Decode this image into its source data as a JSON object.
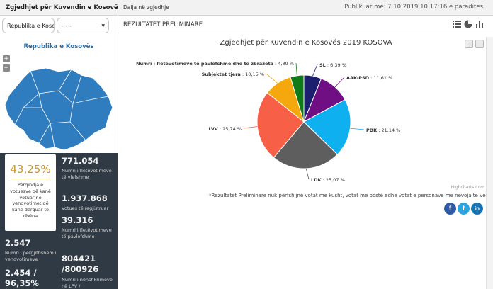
{
  "sidebar": {
    "title": "Zgjedhjet për Kuvendin e Kosovës 2019",
    "region_select": "Republika e Kosovës",
    "municipality_select": "- - -",
    "map_title": "Republika e Kosovës",
    "zoom_in": "+",
    "zoom_out": "−",
    "turnout_percent": "43,25%",
    "turnout_desc": "Përqindja e votuesve që kanë votuar në vendvotimet që kanë dërguar të dhëna",
    "stats": [
      {
        "num": "771.054",
        "label": "Numri i fletëvotimeve të vlefshme"
      },
      {
        "num": "1.937.868",
        "label": "Votues të regjistruar"
      },
      {
        "num": "39.316",
        "label": "Numri i fletëvotimeve të pavlefshme"
      },
      {
        "num": "804421 /800926",
        "label": "Numri i nënshkrimeve në LPV / fletëvotimeve"
      }
    ],
    "stats_left": [
      {
        "num": "2.547",
        "label": "Numri i përgjithshëm i vendvotimeve"
      },
      {
        "num": "2.454 / 96,35%",
        "label": ""
      }
    ]
  },
  "topbar": {
    "round_label": "Dalja në zgjedhje",
    "published": "Publikuar më: 7.10.2019 10:17:16 e paradites"
  },
  "panel": {
    "title": "REZULTATET PRELIMINARE",
    "credit": "Highcharts.com",
    "note": "*Rezultatet Preliminare nuk përfshijnë votat me kusht, votat me postë edhe votat e personave me nevoja te veçanta",
    "social": {
      "fb": "f",
      "tw": "t",
      "li": "in"
    }
  },
  "chart_data": {
    "type": "pie",
    "title": "Zgjedhjet për Kuvendin e Kosovës 2019 KOSOVA",
    "series": [
      {
        "name": "SL",
        "value": 6.39,
        "label": "SL : 6,39 %",
        "color": "#1b1f6e"
      },
      {
        "name": "AAK-PSD",
        "value": 11.61,
        "label": "AAK-PSD : 11,61 %",
        "color": "#6f0f83"
      },
      {
        "name": "PDK",
        "value": 21.14,
        "label": "PDK : 21,14 %",
        "color": "#0fb0ef"
      },
      {
        "name": "LDK",
        "value": 25.07,
        "label": "LDK : 25,07 %",
        "color": "#5e5e5e"
      },
      {
        "name": "LVV",
        "value": 25.74,
        "label": "LVV : 25,74 %",
        "color": "#f76046"
      },
      {
        "name": "Subjektet tjera",
        "value": 10.15,
        "label": "Subjektet tjera : 10,15 %",
        "color": "#f4a80d"
      },
      {
        "name": "Numri i fletëvotimeve të pavlefshme dhe të zbrazëta",
        "value": 4.89,
        "label": "Numri i fletëvotimeve të pavlefshme dhe të zbrazëta : 4,89 %",
        "color": "#0f7a18"
      }
    ]
  },
  "colors": {
    "sidebar_bg": "#2f3a45",
    "map_fill": "#2f7cbf",
    "accent": "#c8952c"
  }
}
